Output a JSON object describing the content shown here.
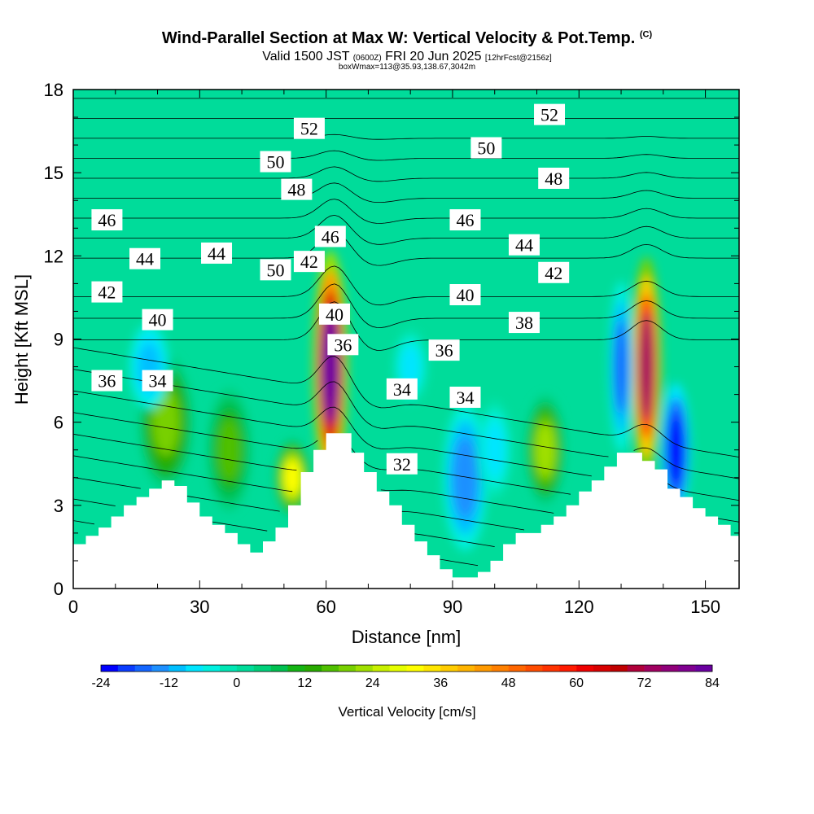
{
  "header": {
    "title": "Wind-Parallel Section at Max W: Vertical Velocity & Pot.Temp.",
    "copyright": "(C)",
    "valid_prefix": "Valid 1500 JST",
    "valid_utc": "(0600Z)",
    "valid_date": "FRI 20 Jun 2025",
    "forecast": "[12hrFcst@2156z]",
    "box_info": "boxWmax=113@35.93,138.67,3042m"
  },
  "chart_data": {
    "type": "heatmap",
    "xlabel": "Distance [nm]",
    "ylabel": "Height [Kft MSL]",
    "xlim": [
      0,
      158
    ],
    "ylim": [
      0,
      18
    ],
    "x_ticks": [
      0,
      30,
      60,
      90,
      120,
      150
    ],
    "y_ticks": [
      0,
      3,
      6,
      9,
      12,
      15,
      18
    ],
    "colorbar": {
      "label": "Vertical Velocity [cm/s]",
      "ticks": [
        -24,
        -12,
        0,
        12,
        24,
        36,
        48,
        60,
        72,
        84
      ],
      "levels": [
        -24,
        -21,
        -18,
        -15,
        -12,
        -9,
        -6,
        -3,
        0,
        3,
        6,
        9,
        12,
        15,
        18,
        21,
        24,
        27,
        30,
        33,
        36,
        39,
        42,
        45,
        48,
        51,
        54,
        57,
        60,
        63,
        66,
        69,
        72,
        75,
        78,
        81,
        84
      ],
      "colors": [
        "#0000ff",
        "#0a3cff",
        "#1466ff",
        "#1e90ff",
        "#00bfff",
        "#00e5ff",
        "#00f0e0",
        "#00e6b4",
        "#00dc9a",
        "#00d07a",
        "#00c050",
        "#14b414",
        "#28aa00",
        "#50c000",
        "#78d000",
        "#a0e000",
        "#c8f000",
        "#e6ff00",
        "#ffff00",
        "#ffe600",
        "#ffcc00",
        "#ffb400",
        "#ff9a00",
        "#ff8000",
        "#ff6600",
        "#ff4c00",
        "#ff3300",
        "#ff1a00",
        "#ee0000",
        "#d80000",
        "#c00000",
        "#b0003a",
        "#a00060",
        "#90007a",
        "#800090",
        "#6a00a0"
      ]
    },
    "series": [
      {
        "kind": "vertical_velocity_max",
        "x": [
          61,
          136,
          22,
          112,
          37,
          52
        ],
        "y": [
          8,
          8,
          6,
          5,
          5,
          4
        ],
        "values": [
          84,
          72,
          18,
          22,
          15,
          30
        ]
      },
      {
        "kind": "vertical_velocity_min",
        "x": [
          143,
          130,
          93,
          18,
          80,
          100
        ],
        "y": [
          5,
          8,
          4,
          8,
          8,
          5
        ],
        "values": [
          -24,
          -18,
          -15,
          -12,
          -9,
          -9
        ]
      },
      {
        "kind": "theta_contour_labels",
        "x": [
          8,
          20,
          20,
          8,
          17,
          8,
          34,
          48,
          56,
          64,
          62,
          61,
          53,
          48,
          56,
          78,
          88,
          78,
          93,
          93,
          93,
          98,
          107,
          107,
          114,
          114,
          113
        ],
        "y": [
          7.5,
          7.5,
          9.7,
          10.7,
          11.9,
          13.3,
          12.1,
          11.5,
          11.8,
          8.8,
          9.9,
          12.7,
          14.4,
          15.4,
          16.6,
          4.5,
          8.6,
          7.2,
          10.6,
          13.3,
          6.9,
          15.9,
          12.4,
          9.6,
          11.4,
          14.8,
          17.1
        ],
        "values": [
          36,
          34,
          40,
          42,
          44,
          46,
          44,
          50,
          42,
          36,
          40,
          46,
          48,
          50,
          52,
          32,
          36,
          34,
          40,
          46,
          34,
          50,
          44,
          38,
          42,
          48,
          52
        ]
      }
    ],
    "terrain_profile": {
      "x": [
        0,
        3,
        6,
        9,
        12,
        15,
        18,
        21,
        24,
        27,
        30,
        33,
        36,
        39,
        42,
        45,
        48,
        51,
        54,
        57,
        60,
        63,
        66,
        69,
        72,
        75,
        78,
        81,
        84,
        87,
        90,
        93,
        96,
        99,
        102,
        105,
        108,
        111,
        114,
        117,
        120,
        123,
        126,
        129,
        132,
        135,
        138,
        141,
        144,
        147,
        150,
        153,
        156,
        158
      ],
      "y": [
        1.6,
        1.9,
        2.2,
        2.6,
        3.0,
        3.3,
        3.6,
        3.9,
        3.7,
        3.1,
        2.6,
        2.3,
        2.0,
        1.6,
        1.3,
        1.7,
        2.2,
        3.0,
        4.2,
        5.0,
        5.6,
        5.6,
        4.9,
        4.2,
        3.5,
        3.0,
        2.3,
        1.7,
        1.2,
        0.7,
        0.4,
        0.4,
        0.6,
        1.0,
        1.6,
        2.0,
        2.0,
        2.3,
        2.6,
        3.0,
        3.5,
        3.9,
        4.4,
        4.9,
        4.9,
        4.6,
        4.3,
        3.6,
        3.3,
        2.9,
        2.6,
        2.3,
        1.9,
        1.9
      ]
    }
  }
}
